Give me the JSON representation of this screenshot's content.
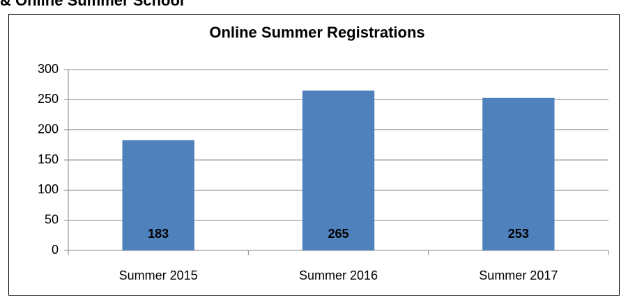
{
  "heading": "& Online Summer School",
  "chart_data": {
    "type": "bar",
    "title": "Online Summer Registrations",
    "categories": [
      "Summer 2015",
      "Summer 2016",
      "Summer 2017"
    ],
    "values": [
      183,
      265,
      253
    ],
    "color": "#4f81bd",
    "ylim": [
      0,
      300
    ],
    "yticks": [
      0,
      50,
      100,
      150,
      200,
      250,
      300
    ],
    "grid": true,
    "data_labels": true
  }
}
